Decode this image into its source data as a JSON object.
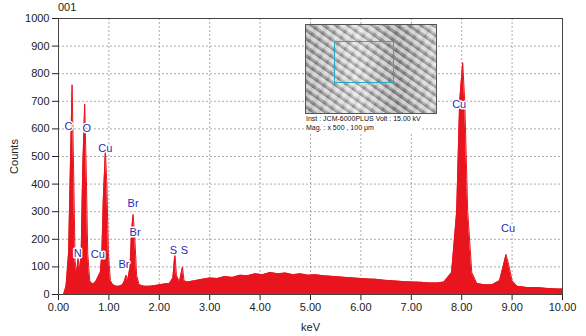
{
  "chart_data": {
    "type": "area",
    "title": "001",
    "x_label": "keV",
    "y_label": "Counts",
    "color": "#e8141e",
    "grid": true,
    "xlim": [
      0,
      10
    ],
    "xticks": [
      {
        "value": 0,
        "label": "0.00"
      },
      {
        "value": 1,
        "label": "1.00"
      },
      {
        "value": 2,
        "label": "2.00"
      },
      {
        "value": 3,
        "label": "3.00"
      },
      {
        "value": 4,
        "label": "4.00"
      },
      {
        "value": 5,
        "label": "5.00"
      },
      {
        "value": 6,
        "label": "6.00"
      },
      {
        "value": 7,
        "label": "7.00"
      },
      {
        "value": 8,
        "label": "8.00"
      },
      {
        "value": 9,
        "label": "9.00"
      },
      {
        "value": 10,
        "label": "10.00"
      }
    ],
    "ylim": [
      0,
      1000
    ],
    "yticks": [
      0,
      100,
      200,
      300,
      400,
      500,
      600,
      700,
      800,
      900,
      1000
    ],
    "x": [
      0.1,
      0.15,
      0.2,
      0.24,
      0.27,
      0.3,
      0.33,
      0.36,
      0.39,
      0.42,
      0.45,
      0.48,
      0.52,
      0.55,
      0.58,
      0.62,
      0.66,
      0.7,
      0.75,
      0.8,
      0.83,
      0.86,
      0.89,
      0.93,
      0.96,
      0.99,
      1.03,
      1.08,
      1.15,
      1.2,
      1.27,
      1.31,
      1.34,
      1.37,
      1.42,
      1.45,
      1.48,
      1.51,
      1.55,
      1.6,
      1.7,
      1.8,
      1.9,
      2.0,
      2.1,
      2.2,
      2.27,
      2.31,
      2.34,
      2.4,
      2.46,
      2.49,
      2.55,
      2.7,
      2.85,
      3.0,
      3.15,
      3.3,
      3.45,
      3.6,
      3.75,
      3.9,
      4.05,
      4.2,
      4.35,
      4.5,
      4.65,
      4.8,
      4.95,
      5.1,
      5.25,
      5.4,
      5.55,
      5.7,
      5.85,
      6.0,
      6.15,
      6.3,
      6.45,
      6.6,
      6.75,
      6.9,
      7.05,
      7.2,
      7.35,
      7.5,
      7.65,
      7.8,
      7.9,
      7.96,
      8.02,
      8.06,
      8.12,
      8.2,
      8.3,
      8.45,
      8.6,
      8.75,
      8.82,
      8.88,
      8.93,
      9.0,
      9.1,
      9.3,
      9.5,
      9.7,
      9.9,
      10.0
    ],
    "values": [
      0,
      30,
      150,
      500,
      760,
      450,
      120,
      80,
      130,
      90,
      150,
      450,
      690,
      450,
      150,
      50,
      40,
      40,
      50,
      70,
      80,
      150,
      350,
      520,
      400,
      150,
      50,
      35,
      30,
      30,
      35,
      50,
      70,
      50,
      100,
      230,
      290,
      220,
      70,
      35,
      30,
      30,
      32,
      35,
      38,
      40,
      60,
      150,
      70,
      45,
      100,
      50,
      45,
      50,
      55,
      60,
      58,
      65,
      62,
      70,
      68,
      75,
      72,
      80,
      75,
      78,
      72,
      75,
      70,
      72,
      68,
      66,
      64,
      62,
      60,
      58,
      56,
      55,
      52,
      50,
      48,
      46,
      45,
      44,
      42,
      42,
      45,
      80,
      300,
      700,
      840,
      700,
      300,
      80,
      40,
      35,
      35,
      50,
      100,
      145,
      110,
      50,
      30,
      25,
      25,
      22,
      20,
      20
    ],
    "annotations": [
      {
        "text": "C",
        "x": 0.2,
        "y": 610
      },
      {
        "text": "N",
        "x": 0.38,
        "y": 150
      },
      {
        "text": "O",
        "x": 0.56,
        "y": 600
      },
      {
        "text": "Cu",
        "x": 0.93,
        "y": 530
      },
      {
        "text": "Cu",
        "x": 0.78,
        "y": 145
      },
      {
        "text": "Br",
        "x": 1.48,
        "y": 330
      },
      {
        "text": "Br",
        "x": 1.52,
        "y": 225
      },
      {
        "text": "Br",
        "x": 1.3,
        "y": 110
      },
      {
        "text": "S",
        "x": 2.28,
        "y": 160
      },
      {
        "text": "S",
        "x": 2.5,
        "y": 160
      },
      {
        "text": "Cu",
        "x": 7.95,
        "y": 690
      },
      {
        "text": "Cu",
        "x": 8.92,
        "y": 240
      }
    ],
    "inset_text": [
      "Inst : JCM-6000PLUS Volt : 15.00 kV",
      "Mag. : x 500 , 100 μm"
    ]
  }
}
